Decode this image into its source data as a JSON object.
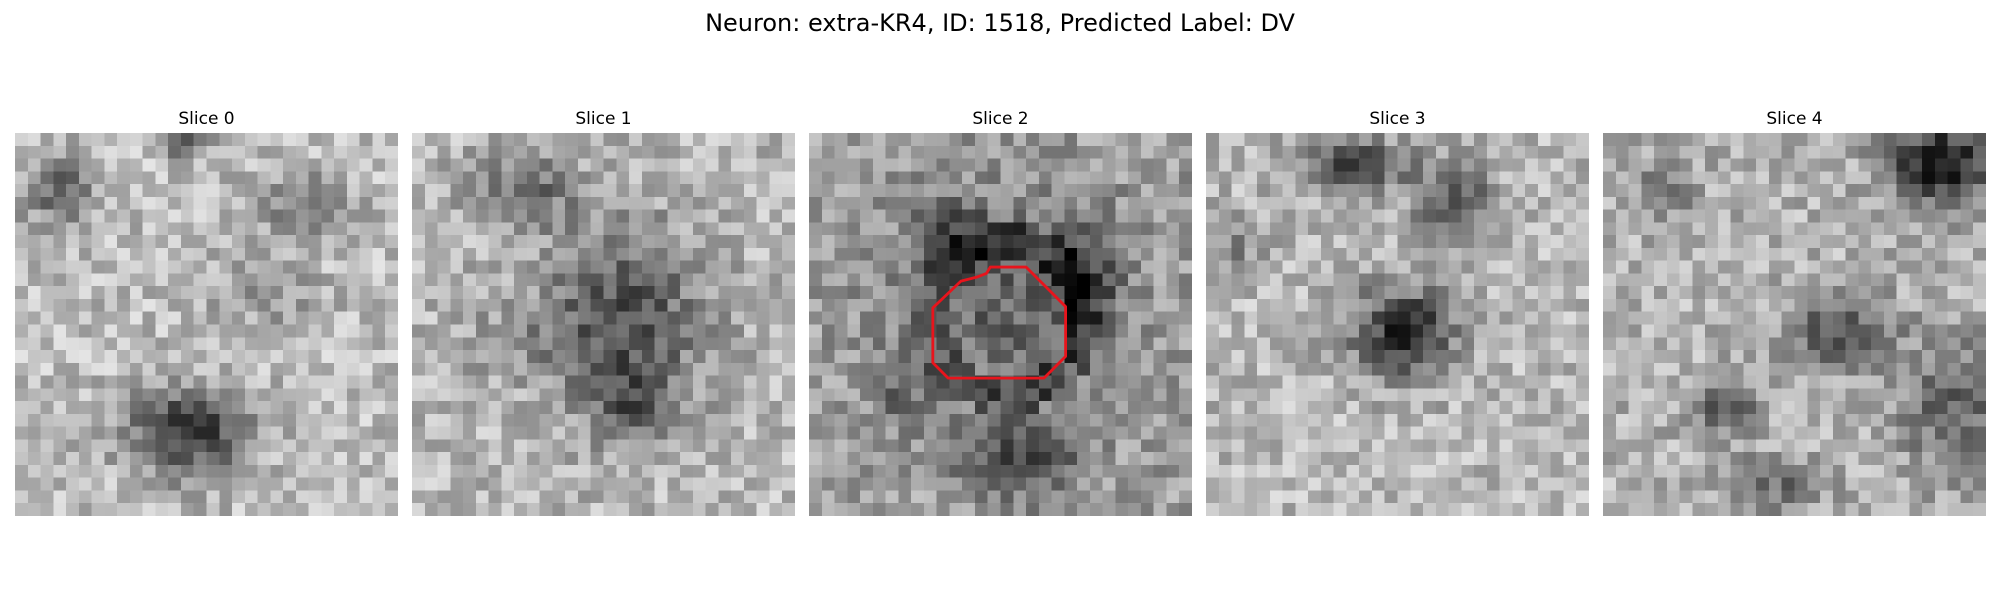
{
  "figure": {
    "title": "Neuron: extra-KR4, ID: 1518, Predicted Label: DV"
  },
  "colors": {
    "background": "#ffffff",
    "contour": "#e8141c",
    "colormap": "gray"
  },
  "panels": [
    {
      "label": "Slice 0",
      "contour": false
    },
    {
      "label": "Slice 1",
      "contour": false
    },
    {
      "label": "Slice 2",
      "contour": true
    },
    {
      "label": "Slice 3",
      "contour": false
    },
    {
      "label": "Slice 4",
      "contour": false
    }
  ]
}
